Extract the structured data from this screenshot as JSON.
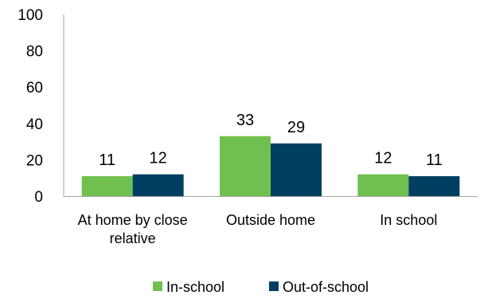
{
  "chart_data": {
    "type": "bar",
    "title": "",
    "xlabel": "",
    "ylabel": "",
    "categories": [
      "At home by close relative",
      "Outside home",
      "In school"
    ],
    "category_lines": [
      [
        "At home by close",
        "relative"
      ],
      [
        "Outside home"
      ],
      [
        "In school"
      ]
    ],
    "series": [
      {
        "name": "In-school",
        "color": "#70c04f",
        "values": [
          11,
          33,
          12
        ]
      },
      {
        "name": "Out-of-school",
        "color": "#003f62",
        "values": [
          12,
          29,
          11
        ]
      }
    ],
    "ylim": [
      0,
      100
    ],
    "yticks": [
      "0",
      "20",
      "40",
      "60",
      "80",
      "100"
    ],
    "grid": false,
    "legend": "bottom-center",
    "data_labels": true
  }
}
